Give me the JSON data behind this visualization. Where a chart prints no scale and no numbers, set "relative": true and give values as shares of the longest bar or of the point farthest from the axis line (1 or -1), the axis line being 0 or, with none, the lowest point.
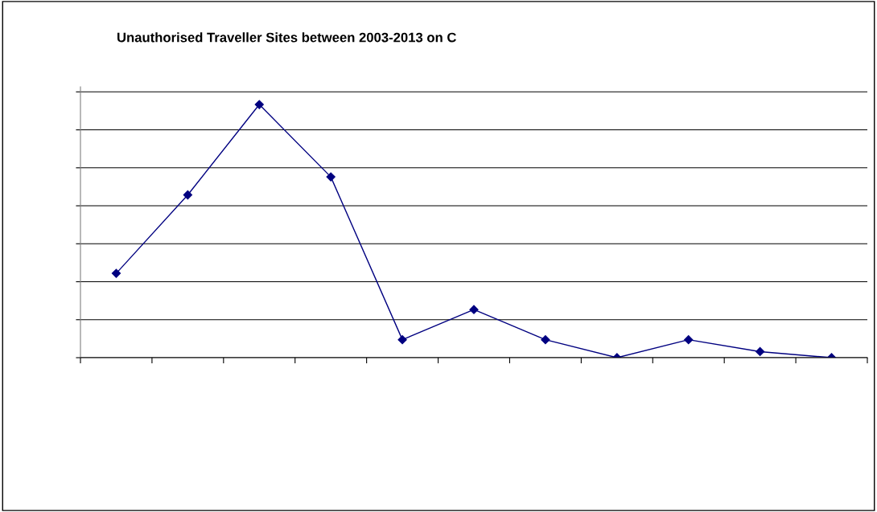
{
  "chart_data": {
    "type": "line",
    "title": "Unauthorised Traveller Sites between 2003-2013 on C",
    "categories": [
      null,
      null,
      null,
      null,
      null,
      null,
      null,
      null,
      null,
      null,
      null
    ],
    "relative": true,
    "series": [
      {
        "color": "#000080",
        "values": [
          0.333,
          0.643,
          1,
          0.714,
          0.071,
          0.19,
          0.071,
          0,
          0.071,
          0.024,
          0
        ]
      }
    ],
    "marker": "diamond",
    "line_style": "solid",
    "grid": "y",
    "legend": false
  }
}
